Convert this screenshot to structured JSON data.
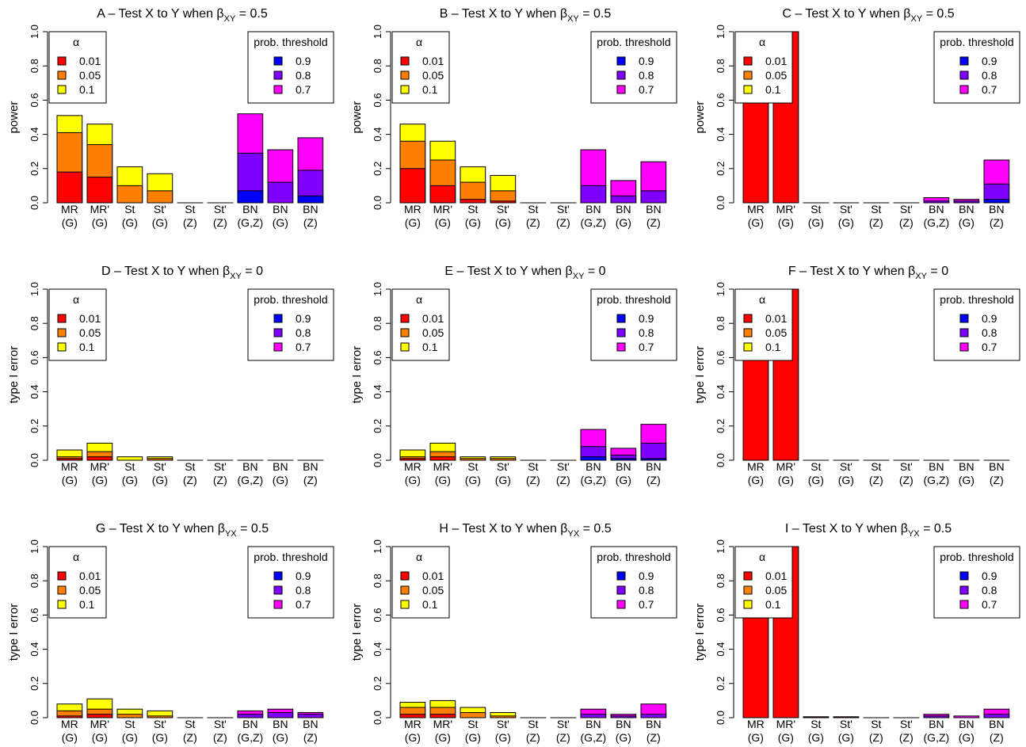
{
  "figure": {
    "categories": [
      [
        "MR",
        "(G)"
      ],
      [
        "MR'",
        "(G)"
      ],
      [
        "St",
        "(G)"
      ],
      [
        "St'",
        "(G)"
      ],
      [
        "St",
        "(Z)"
      ],
      [
        "St'",
        "(Z)"
      ],
      [
        "BN",
        "(G,Z)"
      ],
      [
        "BN",
        "(G)"
      ],
      [
        "BN",
        "(Z)"
      ]
    ],
    "y_ticks": [
      "0.0",
      "0.2",
      "0.4",
      "0.6",
      "0.8",
      "1.0"
    ],
    "alpha_legend": {
      "title": "α",
      "entries": [
        "0.01",
        "0.05",
        "0.1"
      ],
      "colors": [
        "#ff0000",
        "#ff8000",
        "#ffff00"
      ]
    },
    "prob_legend": {
      "title": "prob. threshold",
      "entries": [
        "0.9",
        "0.8",
        "0.7"
      ],
      "colors": [
        "#0000ff",
        "#8000ff",
        "#ff00ff"
      ]
    }
  },
  "chart_data": [
    {
      "type": "bar",
      "panel": "A",
      "title": "A  –  Test X to Y when β",
      "subscript": "XY",
      "title_suffix": " = 0.5",
      "ylabel": "power",
      "ylim": [
        0,
        1
      ],
      "stacks": [
        [
          0.18,
          0.41,
          0.51
        ],
        [
          0.15,
          0.34,
          0.46
        ],
        [
          0.0,
          0.1,
          0.21
        ],
        [
          0.0,
          0.07,
          0.17
        ],
        [
          0,
          0,
          0
        ],
        [
          0,
          0,
          0
        ],
        [
          0.07,
          0.29,
          0.52
        ],
        [
          0.0,
          0.12,
          0.31
        ],
        [
          0.04,
          0.19,
          0.38
        ]
      ]
    },
    {
      "type": "bar",
      "panel": "B",
      "title": "B  –  Test X to Y when β",
      "subscript": "XY",
      "title_suffix": " = 0.5",
      "ylabel": "power",
      "ylim": [
        0,
        1
      ],
      "stacks": [
        [
          0.2,
          0.36,
          0.46
        ],
        [
          0.1,
          0.25,
          0.36
        ],
        [
          0.02,
          0.12,
          0.21
        ],
        [
          0.01,
          0.07,
          0.16
        ],
        [
          0,
          0,
          0
        ],
        [
          0,
          0,
          0
        ],
        [
          0.0,
          0.1,
          0.31
        ],
        [
          0.0,
          0.04,
          0.13
        ],
        [
          0.0,
          0.07,
          0.24
        ]
      ]
    },
    {
      "type": "bar",
      "panel": "C",
      "title": "C  –  Test X to Y when β",
      "subscript": "XY",
      "title_suffix": " = 0.5",
      "ylabel": "power",
      "ylim": [
        0,
        1
      ],
      "stacks": [
        [
          0.85,
          0.93,
          0.96
        ],
        [
          1.0,
          1.0,
          1.0
        ],
        [
          0,
          0,
          0
        ],
        [
          0,
          0,
          0
        ],
        [
          0,
          0,
          0
        ],
        [
          0,
          0,
          0
        ],
        [
          0.0,
          0.01,
          0.03
        ],
        [
          0.0,
          0.01,
          0.02
        ],
        [
          0.02,
          0.11,
          0.25
        ]
      ]
    },
    {
      "type": "bar",
      "panel": "D",
      "title": "D  –  Test X to Y when β",
      "subscript": "XY",
      "title_suffix": " = 0",
      "ylabel": "type I error",
      "ylim": [
        0,
        1
      ],
      "stacks": [
        [
          0.01,
          0.02,
          0.06
        ],
        [
          0.02,
          0.05,
          0.1
        ],
        [
          0.0,
          0.0,
          0.02
        ],
        [
          0.0,
          0.01,
          0.02
        ],
        [
          0,
          0,
          0
        ],
        [
          0,
          0,
          0
        ],
        [
          0,
          0,
          0
        ],
        [
          0,
          0,
          0
        ],
        [
          0,
          0,
          0
        ]
      ]
    },
    {
      "type": "bar",
      "panel": "E",
      "title": "E  –  Test X to Y when β",
      "subscript": "XY",
      "title_suffix": " = 0",
      "ylabel": "type I error",
      "ylim": [
        0,
        1
      ],
      "stacks": [
        [
          0.01,
          0.02,
          0.06
        ],
        [
          0.02,
          0.05,
          0.1
        ],
        [
          0.0,
          0.01,
          0.02
        ],
        [
          0.0,
          0.01,
          0.02
        ],
        [
          0,
          0,
          0
        ],
        [
          0,
          0,
          0
        ],
        [
          0.02,
          0.08,
          0.18
        ],
        [
          0.01,
          0.03,
          0.07
        ],
        [
          0.01,
          0.1,
          0.21
        ]
      ]
    },
    {
      "type": "bar",
      "panel": "F",
      "title": "F  –  Test X to Y when β",
      "subscript": "XY",
      "title_suffix": " = 0",
      "ylabel": "type I error",
      "ylim": [
        0,
        1
      ],
      "stacks": [
        [
          0.76,
          0.92,
          0.97
        ],
        [
          1.0,
          1.0,
          1.0
        ],
        [
          0,
          0,
          0
        ],
        [
          0,
          0,
          0
        ],
        [
          0,
          0,
          0
        ],
        [
          0,
          0,
          0
        ],
        [
          0,
          0,
          0
        ],
        [
          0,
          0,
          0
        ],
        [
          0,
          0,
          0
        ]
      ]
    },
    {
      "type": "bar",
      "panel": "G",
      "title": "G  –  Test X to Y when β",
      "subscript": "YX",
      "title_suffix": " = 0.5",
      "ylabel": "type I error",
      "ylim": [
        0,
        1
      ],
      "stacks": [
        [
          0.01,
          0.04,
          0.08
        ],
        [
          0.02,
          0.05,
          0.11
        ],
        [
          0.0,
          0.02,
          0.05
        ],
        [
          0.0,
          0.01,
          0.04
        ],
        [
          0,
          0,
          0
        ],
        [
          0,
          0,
          0
        ],
        [
          0.0,
          0.02,
          0.04
        ],
        [
          0.0,
          0.03,
          0.05
        ],
        [
          0.0,
          0.02,
          0.03
        ]
      ]
    },
    {
      "type": "bar",
      "panel": "H",
      "title": "H  –  Test X to Y when β",
      "subscript": "YX",
      "title_suffix": " = 0.5",
      "ylabel": "type I error",
      "ylim": [
        0,
        1
      ],
      "stacks": [
        [
          0.02,
          0.06,
          0.09
        ],
        [
          0.02,
          0.06,
          0.1
        ],
        [
          0.0,
          0.03,
          0.06
        ],
        [
          0.0,
          0.01,
          0.03
        ],
        [
          0,
          0,
          0
        ],
        [
          0,
          0,
          0
        ],
        [
          0.0,
          0.02,
          0.05
        ],
        [
          0.0,
          0.01,
          0.02
        ],
        [
          0.0,
          0.02,
          0.08
        ]
      ]
    },
    {
      "type": "bar",
      "panel": "I",
      "title": "I  –  Test X to Y when β",
      "subscript": "YX",
      "title_suffix": " = 0.5",
      "ylabel": "type I error",
      "ylim": [
        0,
        1
      ],
      "stacks": [
        [
          1.0,
          1.0,
          1.0
        ],
        [
          1.0,
          1.0,
          1.0
        ],
        [
          0.005,
          0.005,
          0.005
        ],
        [
          0.005,
          0.005,
          0.005
        ],
        [
          0,
          0,
          0
        ],
        [
          0,
          0,
          0
        ],
        [
          0.0,
          0.01,
          0.02
        ],
        [
          0.0,
          0.0,
          0.01
        ],
        [
          0.0,
          0.02,
          0.05
        ]
      ]
    }
  ]
}
